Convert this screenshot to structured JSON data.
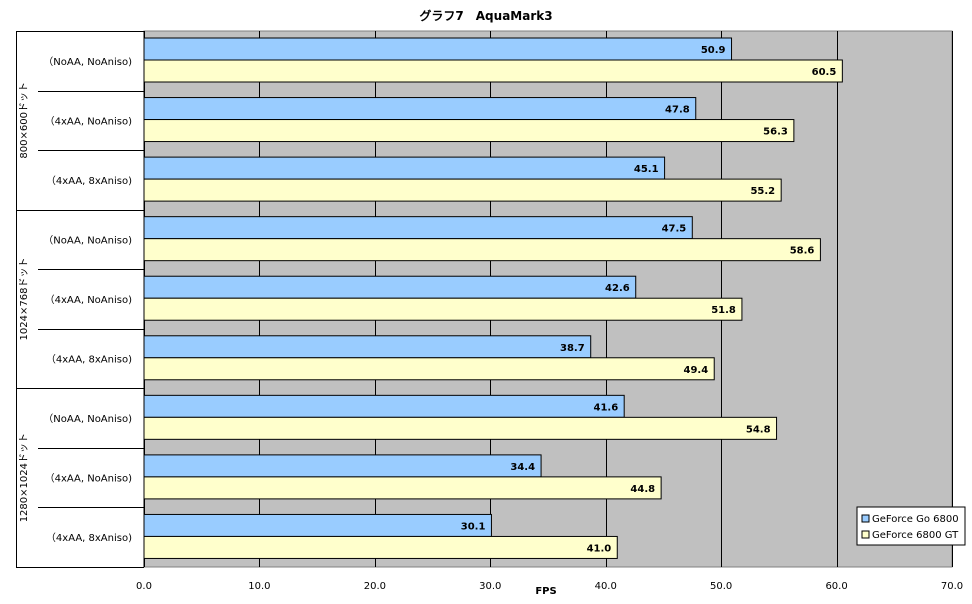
{
  "chart_data": {
    "type": "bar",
    "orientation": "horizontal",
    "title": "グラフ7　AquaMark3",
    "xlabel": "FPS",
    "ylabel": "",
    "xlim": [
      0,
      70
    ],
    "tick_step": 10,
    "tick_labels": [
      "0.0",
      "10.0",
      "20.0",
      "30.0",
      "40.0",
      "50.0",
      "60.0",
      "70.0"
    ],
    "grid": true,
    "legend_position": "bottom-right",
    "groups": [
      {
        "label": "800×600ドット",
        "categories": [
          "（NoAA, NoAniso)",
          "（4xAA, NoAniso)",
          "（4xAA, 8xAniso)"
        ]
      },
      {
        "label": "1024×768ドット",
        "categories": [
          "（NoAA, NoAniso)",
          "（4xAA, NoAniso)",
          "（4xAA, 8xAniso)"
        ]
      },
      {
        "label": "1280×1024ドット",
        "categories": [
          "（NoAA, NoAniso)",
          "（4xAA, NoAniso)",
          "（4xAA, 8xAniso)"
        ]
      }
    ],
    "series": [
      {
        "name": "GeForce Go 6800",
        "color": "#99ccff",
        "values": [
          50.9,
          47.8,
          45.1,
          47.5,
          42.6,
          38.7,
          41.6,
          34.4,
          30.1
        ],
        "labels": [
          "50.9",
          "47.8",
          "45.1",
          "47.5",
          "42.6",
          "38.7",
          "41.6",
          "34.4",
          "30.1"
        ]
      },
      {
        "name": "GeForce 6800 GT",
        "color": "#ffffcc",
        "values": [
          60.5,
          56.3,
          55.2,
          58.6,
          51.8,
          49.4,
          54.8,
          44.8,
          41.0
        ],
        "labels": [
          "60.5",
          "56.3",
          "55.2",
          "58.6",
          "51.8",
          "49.4",
          "54.8",
          "44.8",
          "41.0"
        ]
      }
    ],
    "plot_background": "#c0c0c0"
  }
}
